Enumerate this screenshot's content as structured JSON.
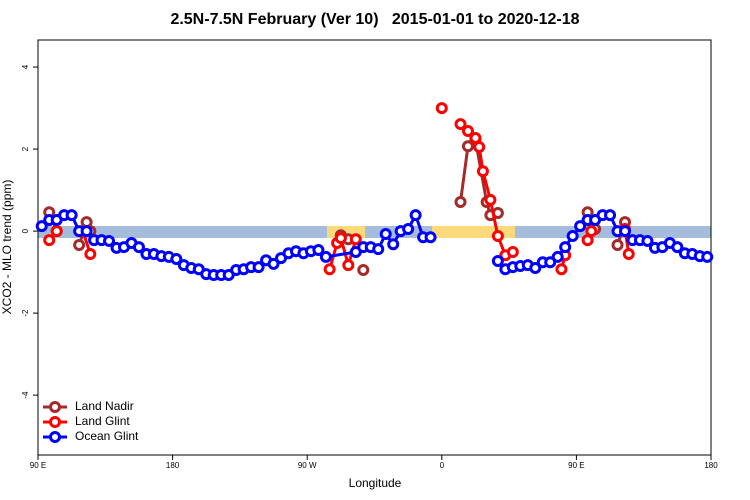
{
  "chart_data": {
    "type": "line",
    "title": "2.5N-7.5N February (Ver 10)   2015-01-01 to 2020-12-18",
    "x_label": "Longitude",
    "y_label": "XCO2 - MLO trend (ppm)",
    "xlim": [
      90,
      540
    ],
    "ylim": [
      -5.46,
      4.66
    ],
    "xticks": [
      {
        "value": 90,
        "label": "90 E"
      },
      180,
      {
        "value": 270,
        "label": "90 W"
      },
      {
        "value": 360,
        "label": "0"
      },
      {
        "value": 450,
        "label": "90 E"
      },
      {
        "value": 540,
        "label": "180"
      }
    ],
    "yticks": [
      -4,
      -2,
      0,
      2,
      4
    ],
    "legend": "bottom-left",
    "series": [
      {
        "name": "Land Nadir",
        "color": "#a52a2a",
        "x": [
          97.5,
          102.5,
          110,
          117.5,
          122.5,
          125,
          250,
          292.5,
          297.5,
          300,
          307.5,
          340,
          372.5,
          377.5,
          382.5,
          390,
          392.5,
          397.5,
          420,
          457.5,
          462.5,
          470,
          477.5,
          482.5
        ],
        "values": [
          0.46,
          0.0,
          null,
          -0.34,
          0.22,
          0.0,
          null,
          -0.1,
          -0.2,
          null,
          -0.95,
          null,
          0.71,
          2.07,
          2.22,
          0.71,
          0.39,
          0.44,
          null,
          0.46,
          0.05,
          null,
          -0.34,
          0.22
        ]
      },
      {
        "name": "Land Glint",
        "color": "#ff0000",
        "x": [
          97.5,
          102.5,
          110,
          120,
          125,
          250,
          285,
          290,
          292.5,
          297.5,
          302.5,
          330,
          360,
          365,
          372.5,
          377.5,
          382.5,
          385,
          387.5,
          392.5,
          397.5,
          402.5,
          407.5,
          420,
          440,
          442.5,
          450,
          457.5,
          460,
          470,
          482.5,
          485
        ],
        "values": [
          -0.22,
          0.0,
          null,
          0.0,
          -0.56,
          null,
          -0.93,
          -0.29,
          -0.17,
          -0.83,
          -0.2,
          null,
          3.0,
          null,
          2.61,
          2.44,
          2.27,
          2.05,
          1.46,
          0.76,
          -0.12,
          -0.59,
          -0.51,
          null,
          -0.93,
          -0.59,
          null,
          -0.22,
          0.0,
          null,
          0.05,
          -0.56
        ]
      },
      {
        "name": "Ocean Glint",
        "color": "#0000ff",
        "x": [
          92.5,
          97.5,
          102.5,
          107.5,
          112.5,
          117.5,
          122.5,
          127.5,
          132.5,
          137.5,
          142.5,
          147.5,
          152.5,
          157.5,
          162.5,
          167.5,
          172.5,
          177.5,
          182.5,
          187.5,
          192.5,
          197.5,
          202.5,
          207.5,
          212.5,
          217.5,
          222.5,
          227.5,
          232.5,
          237.5,
          242.5,
          247.5,
          252.5,
          257.5,
          262.5,
          267.5,
          272.5,
          277.5,
          282.5,
          302.5,
          307.5,
          312.5,
          317.5,
          322.5,
          327.5,
          332.5,
          337.5,
          342.5,
          347.5,
          352.5,
          375,
          397.5,
          402.5,
          407.5,
          412.5,
          417.5,
          422.5,
          427.5,
          432.5,
          437.5,
          442.5,
          447.5,
          452.5,
          457.5,
          462.5,
          467.5,
          472.5,
          477.5,
          482.5,
          487.5,
          492.5,
          497.5,
          502.5,
          507.5,
          512.5,
          517.5,
          522.5,
          527.5,
          532.5,
          537.5
        ],
        "values": [
          0.12,
          0.27,
          0.27,
          0.39,
          0.39,
          0.0,
          0.0,
          -0.22,
          -0.22,
          -0.24,
          -0.41,
          -0.39,
          -0.29,
          -0.39,
          -0.56,
          -0.56,
          -0.61,
          -0.63,
          -0.68,
          -0.83,
          -0.9,
          -0.93,
          -1.05,
          -1.07,
          -1.07,
          -1.07,
          -0.95,
          -0.93,
          -0.88,
          -0.88,
          -0.71,
          -0.8,
          -0.66,
          -0.54,
          -0.49,
          -0.54,
          -0.49,
          -0.46,
          -0.63,
          -0.51,
          -0.39,
          -0.39,
          -0.44,
          -0.07,
          -0.32,
          0.0,
          0.05,
          0.39,
          -0.15,
          -0.15,
          null,
          -0.73,
          -0.93,
          -0.88,
          -0.85,
          -0.83,
          -0.9,
          -0.76,
          -0.76,
          -0.63,
          -0.39,
          -0.12,
          0.12,
          0.27,
          0.27,
          0.39,
          0.39,
          0.0,
          0.0,
          -0.22,
          -0.22,
          -0.24,
          -0.41,
          -0.39,
          -0.29,
          -0.39,
          -0.54,
          -0.56,
          -0.61,
          -0.63
        ]
      }
    ]
  }
}
